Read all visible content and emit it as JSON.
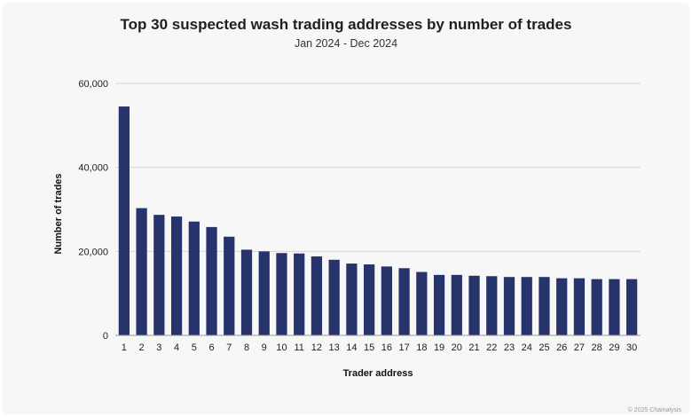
{
  "page": {
    "title": "Top 30 suspected wash trading addresses by number of trades",
    "subtitle": "Jan 2024 - Dec 2024",
    "footer": "© 2025 Chainalysis"
  },
  "chart_data": {
    "type": "bar",
    "title": "Top 30 suspected wash trading addresses by number of trades",
    "subtitle": "Jan 2024 - Dec 2024",
    "xlabel": "Trader address",
    "ylabel": "Number of trades",
    "ylim": [
      0,
      60000
    ],
    "yticks": [
      0,
      20000,
      40000,
      60000
    ],
    "ytick_labels": [
      "0",
      "20,000",
      "40,000",
      "60,000"
    ],
    "grid": true,
    "bar_color": "#27336b",
    "categories": [
      "1",
      "2",
      "3",
      "4",
      "5",
      "6",
      "7",
      "8",
      "9",
      "10",
      "11",
      "12",
      "13",
      "14",
      "15",
      "16",
      "17",
      "18",
      "19",
      "20",
      "21",
      "22",
      "23",
      "24",
      "25",
      "26",
      "27",
      "28",
      "29",
      "30"
    ],
    "values": [
      54500,
      30300,
      28700,
      28300,
      27100,
      25800,
      23500,
      20400,
      20000,
      19600,
      19500,
      18800,
      18000,
      17100,
      16900,
      16400,
      16000,
      15100,
      14400,
      14400,
      14200,
      14100,
      13900,
      13900,
      13900,
      13600,
      13600,
      13400,
      13400,
      13400
    ]
  }
}
